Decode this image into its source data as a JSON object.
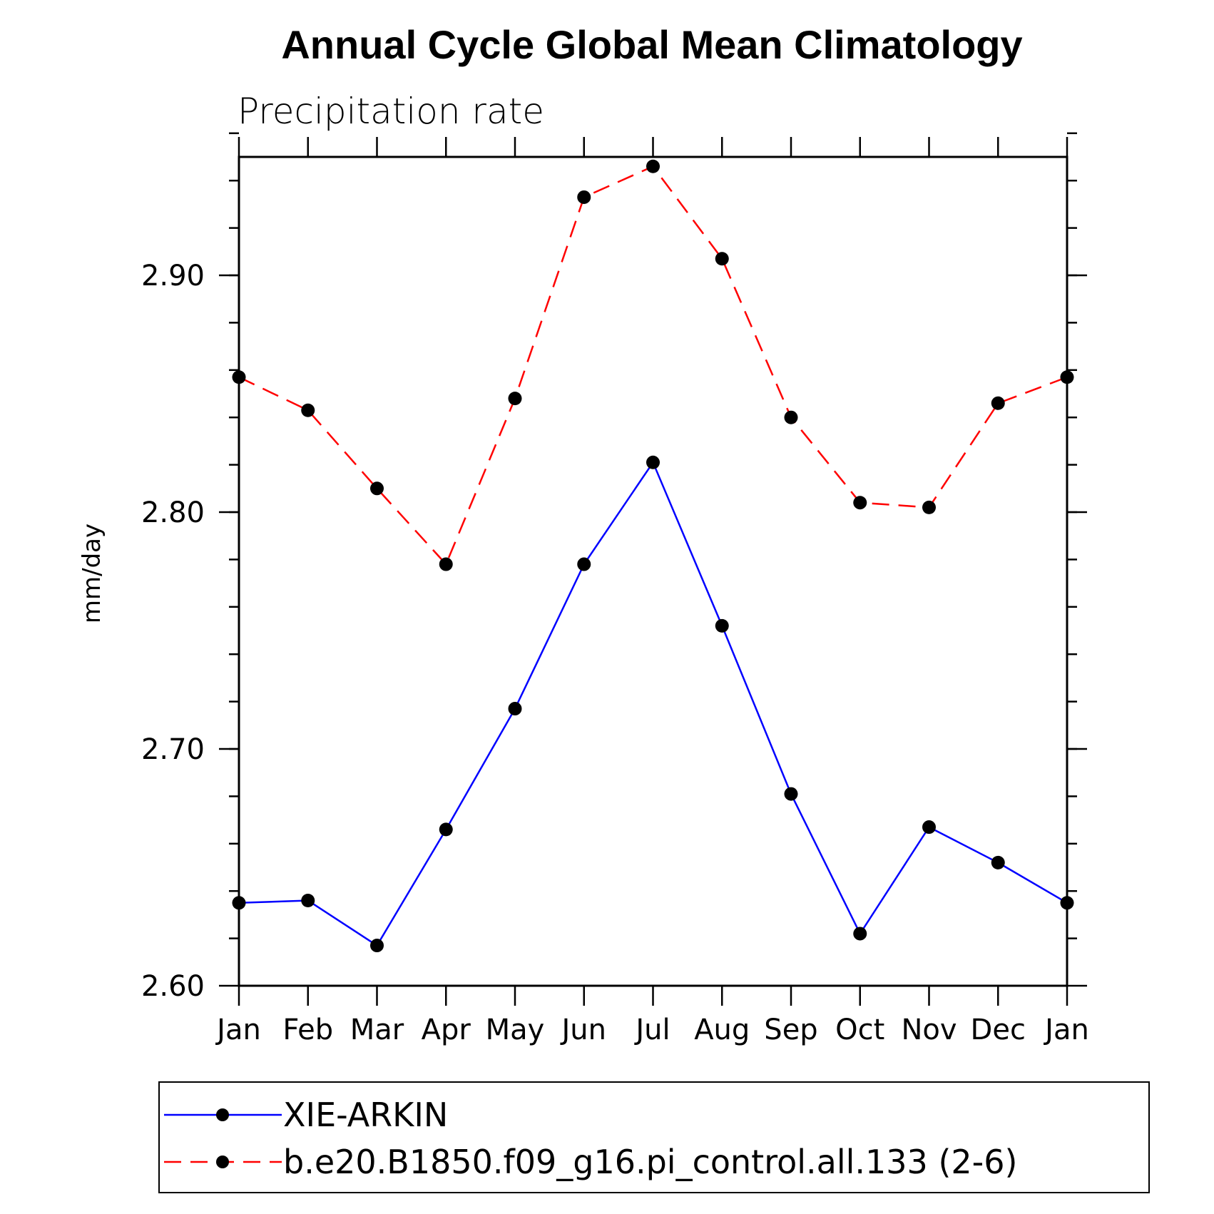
{
  "chart_data": {
    "type": "line",
    "title": "Annual Cycle Global Mean Climatology",
    "subtitle": "Precipitation rate",
    "ylabel": "mm/day",
    "xlabel": "",
    "categories": [
      "Jan",
      "Feb",
      "Mar",
      "Apr",
      "May",
      "Jun",
      "Jul",
      "Aug",
      "Sep",
      "Oct",
      "Nov",
      "Dec",
      "Jan"
    ],
    "ylim": [
      2.6,
      2.95
    ],
    "y_major_ticks": [
      2.6,
      2.7,
      2.8,
      2.9
    ],
    "y_tick_labels": [
      "2.60",
      "2.70",
      "2.80",
      "2.90"
    ],
    "y_minor_step": 0.02,
    "grid": false,
    "legend_position": "bottom",
    "series": [
      {
        "name": "XIE-ARKIN",
        "color": "#0000ff",
        "style": "solid",
        "marker": "circle",
        "values": [
          2.635,
          2.636,
          2.617,
          2.666,
          2.717,
          2.778,
          2.821,
          2.752,
          2.681,
          2.622,
          2.667,
          2.652,
          2.635
        ]
      },
      {
        "name": "b.e20.B1850.f09_g16.pi_control.all.133 (2-6)",
        "color": "#ff0000",
        "style": "dashed",
        "marker": "circle",
        "values": [
          2.857,
          2.843,
          2.81,
          2.778,
          2.848,
          2.933,
          2.946,
          2.907,
          2.84,
          2.804,
          2.802,
          2.846,
          2.857
        ]
      }
    ]
  }
}
